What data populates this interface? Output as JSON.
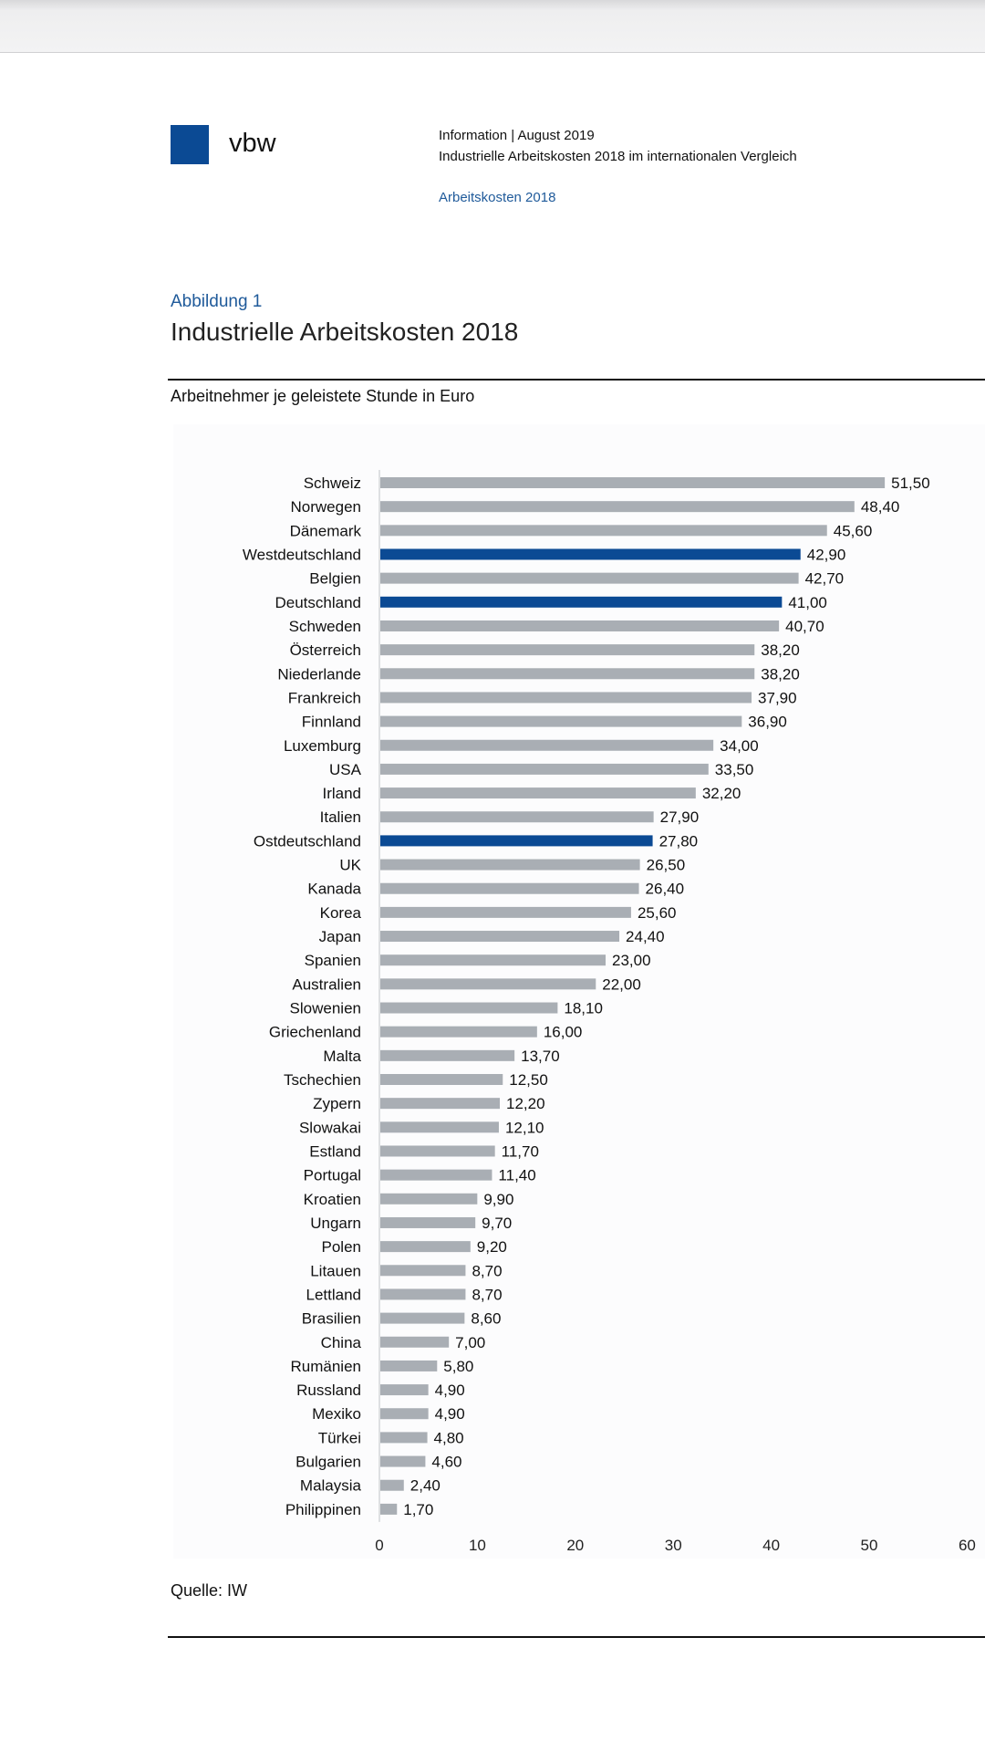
{
  "header": {
    "logo_text": "vbw",
    "info_line": "Information | August 2019",
    "doc_title": "Industrielle Arbeitskosten 2018 im internationalen Vergleich",
    "section": "Arbeitskosten 2018"
  },
  "figure": {
    "label": "Abbildung 1",
    "title": "Industrielle Arbeitskosten 2018",
    "subtitle": "Arbeitnehmer je geleistete Stunde in Euro",
    "source": "Quelle: IW"
  },
  "colors": {
    "brand": "#0b4a94",
    "bar": "#a9aeb4",
    "highlight": "#0b4a94"
  },
  "chart_data": {
    "type": "bar",
    "orientation": "horizontal",
    "title": "Industrielle Arbeitskosten 2018",
    "xlabel": "",
    "ylabel": "",
    "xlim": [
      0,
      60
    ],
    "xticks": [
      "0",
      "10",
      "20",
      "30",
      "40",
      "50",
      "60"
    ],
    "categories": [
      "Schweiz",
      "Norwegen",
      "Dänemark",
      "Westdeutschland",
      "Belgien",
      "Deutschland",
      "Schweden",
      "Österreich",
      "Niederlande",
      "Frankreich",
      "Finnland",
      "Luxemburg",
      "USA",
      "Irland",
      "Italien",
      "Ostdeutschland",
      "UK",
      "Kanada",
      "Korea",
      "Japan",
      "Spanien",
      "Australien",
      "Slowenien",
      "Griechenland",
      "Malta",
      "Tschechien",
      "Zypern",
      "Slowakai",
      "Estland",
      "Portugal",
      "Kroatien",
      "Ungarn",
      "Polen",
      "Litauen",
      "Lettland",
      "Brasilien",
      "China",
      "Rumänien",
      "Russland",
      "Mexiko",
      "Türkei",
      "Bulgarien",
      "Malaysia",
      "Philippinen"
    ],
    "values": [
      51.5,
      48.4,
      45.6,
      42.9,
      42.7,
      41.0,
      40.7,
      38.2,
      38.2,
      37.9,
      36.9,
      34.0,
      33.5,
      32.2,
      27.9,
      27.8,
      26.5,
      26.4,
      25.6,
      24.4,
      23.0,
      22.0,
      18.1,
      16.0,
      13.7,
      12.5,
      12.2,
      12.1,
      11.7,
      11.4,
      9.9,
      9.7,
      9.2,
      8.7,
      8.7,
      8.6,
      7.0,
      5.8,
      4.9,
      4.9,
      4.8,
      4.6,
      2.4,
      1.7
    ],
    "value_labels": [
      "51,50",
      "48,40",
      "45,60",
      "42,90",
      "42,70",
      "41,00",
      "40,70",
      "38,20",
      "38,20",
      "37,90",
      "36,90",
      "34,00",
      "33,50",
      "32,20",
      "27,90",
      "27,80",
      "26,50",
      "26,40",
      "25,60",
      "24,40",
      "23,00",
      "22,00",
      "18,10",
      "16,00",
      "13,70",
      "12,50",
      "12,20",
      "12,10",
      "11,70",
      "11,40",
      "9,90",
      "9,70",
      "9,20",
      "8,70",
      "8,70",
      "8,60",
      "7,00",
      "5,80",
      "4,90",
      "4,90",
      "4,80",
      "4,60",
      "2,40",
      "1,70"
    ],
    "highlighted": [
      "Westdeutschland",
      "Deutschland",
      "Ostdeutschland"
    ],
    "grid": false,
    "legend": "none"
  }
}
